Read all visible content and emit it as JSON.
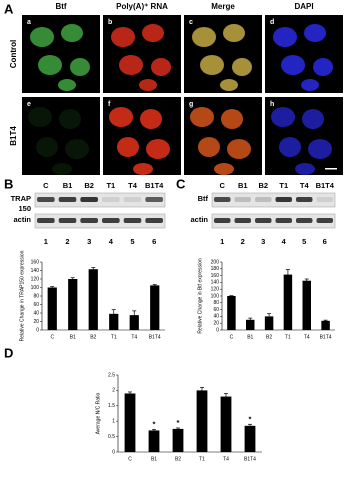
{
  "panel_a": {
    "label": "A",
    "columns": [
      "Btf",
      "Poly(A)⁺ RNA",
      "Merge",
      "DAPI"
    ],
    "rows": [
      "Control",
      "B1T4"
    ],
    "letters": [
      "a",
      "b",
      "c",
      "d",
      "e",
      "f",
      "g",
      "h"
    ]
  },
  "panel_b": {
    "label": "B",
    "lanes": [
      "C",
      "B1",
      "B2",
      "T1",
      "T4",
      "B1T4"
    ],
    "bands": [
      "TRAP",
      "actin"
    ],
    "band_sublabel": "150",
    "lane_numbers": [
      1,
      2,
      3,
      4,
      5,
      6
    ]
  },
  "panel_c": {
    "label": "C",
    "lanes": [
      "C",
      "B1",
      "B2",
      "T1",
      "T4",
      "B1T4"
    ],
    "bands": [
      "Btf",
      "actin"
    ],
    "lane_numbers": [
      1,
      2,
      3,
      4,
      5,
      6
    ]
  },
  "panel_d": {
    "label": "D"
  },
  "chart_data": [
    {
      "type": "bar",
      "ylabel": "Relative Change in TRAP150 expression",
      "categories": [
        "C",
        "B1",
        "B2",
        "T1",
        "T4",
        "B1T4"
      ],
      "values": [
        100,
        120,
        143,
        38,
        35,
        105
      ],
      "errors": [
        2,
        3,
        4,
        10,
        10,
        2
      ],
      "color": "#000000",
      "ylim": [
        0,
        160
      ],
      "yticks": [
        0,
        20,
        40,
        60,
        80,
        100,
        120,
        140,
        160
      ]
    },
    {
      "type": "bar",
      "ylabel": "Relative Change in Btf expression",
      "categories": [
        "C",
        "B1",
        "B2",
        "T1",
        "T4",
        "B1T4"
      ],
      "values": [
        100,
        30,
        40,
        163,
        145,
        27
      ],
      "errors": [
        1,
        5,
        8,
        15,
        5,
        2
      ],
      "color": "#000000",
      "ylim": [
        0,
        200
      ],
      "yticks": [
        0,
        20,
        40,
        60,
        80,
        100,
        120,
        140,
        160,
        180,
        200
      ]
    },
    {
      "type": "bar",
      "ylabel": "Average N/C Ratio",
      "categories": [
        "C",
        "B1",
        "B2",
        "T1",
        "T4",
        "B1T4"
      ],
      "values": [
        1.9,
        0.7,
        0.75,
        2.0,
        1.8,
        0.85
      ],
      "errors": [
        0.05,
        0.03,
        0.03,
        0.1,
        0.1,
        0.05
      ],
      "color": "#000000",
      "ylim": [
        0,
        2.5
      ],
      "yticks": [
        0,
        0.5,
        1,
        1.5,
        2,
        2.5
      ],
      "annotations": [
        null,
        "*",
        "*",
        null,
        null,
        "*"
      ]
    }
  ]
}
